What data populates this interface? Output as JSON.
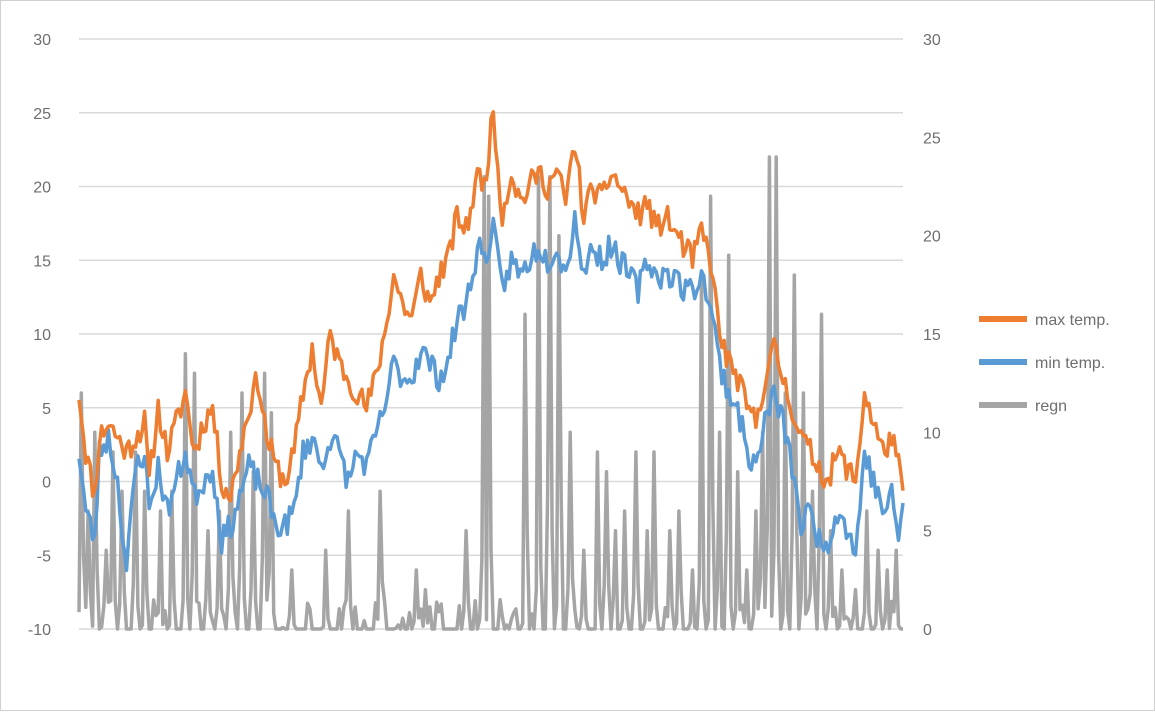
{
  "chart_data": {
    "type": "line",
    "title": "",
    "xlabel": "",
    "ylabel": "",
    "y_left": {
      "ylim": [
        -10,
        30
      ],
      "ticks": [
        -10,
        -5,
        0,
        5,
        10,
        15,
        20,
        25,
        30
      ],
      "tick_labels": [
        "-10",
        "-5",
        "0",
        "5",
        "10",
        "15",
        "20",
        "25",
        "30"
      ]
    },
    "y_right": {
      "ylim": [
        0,
        30
      ],
      "ticks": [
        0,
        5,
        10,
        15,
        20,
        25,
        30
      ],
      "tick_labels": [
        "0",
        "5",
        "10",
        "15",
        "20",
        "25",
        "30"
      ]
    },
    "grid": true,
    "legend_position": "right",
    "x": {
      "start": 1,
      "end": 365,
      "step": 1,
      "labels_shown": false
    },
    "series": [
      {
        "name": "max temp.",
        "axis": "left",
        "color": "#ED7D31",
        "knots_x": [
          1,
          4,
          8,
          10,
          14,
          18,
          22,
          26,
          30,
          32,
          36,
          40,
          44,
          48,
          52,
          56,
          60,
          64,
          68,
          72,
          76,
          80,
          84,
          88,
          92,
          96,
          100,
          104,
          108,
          112,
          116,
          120,
          124,
          128,
          132,
          136,
          140,
          144,
          148,
          152,
          156,
          160,
          164,
          168,
          172,
          176,
          178,
          180,
          184,
          188,
          192,
          196,
          200,
          204,
          208,
          212,
          216,
          220,
          224,
          228,
          232,
          236,
          240,
          244,
          248,
          252,
          256,
          260,
          264,
          268,
          272,
          276,
          280,
          284,
          288,
          292,
          296,
          300,
          304,
          308,
          312,
          316,
          320,
          324,
          328,
          332,
          336,
          340,
          344,
          348,
          352,
          356,
          360,
          363,
          365
        ],
        "knots_y": [
          6,
          2,
          -1,
          3,
          4,
          3,
          2,
          3,
          4,
          0,
          5,
          2,
          4,
          6,
          2,
          4,
          5,
          0,
          -1,
          2,
          5,
          7,
          3,
          1,
          0,
          2,
          6,
          9,
          5,
          10,
          8,
          7,
          6,
          5,
          7,
          10,
          14,
          12,
          11,
          14,
          12,
          14,
          15,
          18,
          17,
          20,
          21,
          20,
          25,
          18,
          21,
          19,
          20,
          21,
          20,
          21,
          19,
          23,
          18,
          20,
          19,
          21,
          20,
          19,
          18,
          19,
          17,
          18,
          17,
          16,
          15,
          17,
          15,
          10,
          8,
          7,
          5,
          4,
          7,
          9,
          7,
          5,
          3,
          2,
          1,
          0,
          2,
          1,
          0,
          6,
          4,
          2,
          3,
          1,
          -1
        ],
        "noise_amplitude": 0.9,
        "noise_seed": 11
      },
      {
        "name": "min temp.",
        "axis": "left",
        "color": "#5B9BD5",
        "knots_x": [
          1,
          4,
          8,
          10,
          14,
          18,
          22,
          26,
          30,
          32,
          36,
          40,
          44,
          48,
          52,
          56,
          60,
          64,
          68,
          72,
          76,
          80,
          84,
          88,
          92,
          96,
          100,
          104,
          108,
          112,
          116,
          120,
          124,
          128,
          132,
          136,
          140,
          144,
          148,
          152,
          156,
          160,
          164,
          168,
          172,
          176,
          178,
          180,
          184,
          188,
          192,
          196,
          200,
          204,
          208,
          212,
          216,
          220,
          224,
          228,
          232,
          236,
          240,
          244,
          248,
          252,
          256,
          260,
          264,
          268,
          272,
          276,
          280,
          284,
          288,
          292,
          296,
          300,
          304,
          308,
          312,
          316,
          320,
          324,
          328,
          332,
          336,
          340,
          344,
          348,
          352,
          356,
          360,
          363,
          365
        ],
        "knots_y": [
          2,
          -2,
          -4,
          2,
          3,
          0,
          -6,
          1,
          2,
          -2,
          1,
          -2,
          0,
          2,
          -1,
          0,
          1,
          -4,
          -3,
          -1,
          1,
          0,
          -1,
          -3,
          -3,
          -2,
          2,
          3,
          1,
          3,
          2,
          0,
          2,
          1,
          3,
          5,
          8,
          7,
          7,
          9,
          8,
          7,
          8,
          11,
          12,
          15,
          16,
          15,
          17,
          13,
          15,
          14,
          15,
          16,
          15,
          16,
          14,
          18,
          14,
          16,
          15,
          16,
          15,
          14,
          13,
          15,
          14,
          14,
          14,
          13,
          13,
          14,
          12,
          8,
          6,
          5,
          2,
          1,
          4,
          6,
          4,
          1,
          -3,
          -2,
          -4,
          -4,
          -2,
          -3,
          -5,
          2,
          0,
          -2,
          -1,
          -4,
          -1
        ],
        "noise_amplitude": 0.9,
        "noise_seed": 23
      },
      {
        "name": "regn",
        "axis": "right",
        "color": "#A5A5A5",
        "values": [
          {
            "day": 2,
            "value": 12
          },
          {
            "day": 5,
            "value": 6
          },
          {
            "day": 8,
            "value": 10
          },
          {
            "day": 13,
            "value": 4
          },
          {
            "day": 16,
            "value": 9
          },
          {
            "day": 20,
            "value": 7
          },
          {
            "day": 26,
            "value": 9
          },
          {
            "day": 30,
            "value": 7
          },
          {
            "day": 37,
            "value": 6
          },
          {
            "day": 42,
            "value": 7
          },
          {
            "day": 48,
            "value": 14
          },
          {
            "day": 52,
            "value": 13
          },
          {
            "day": 58,
            "value": 5
          },
          {
            "day": 63,
            "value": 6
          },
          {
            "day": 68,
            "value": 10
          },
          {
            "day": 73,
            "value": 12
          },
          {
            "day": 78,
            "value": 8
          },
          {
            "day": 83,
            "value": 13
          },
          {
            "day": 86,
            "value": 11
          },
          {
            "day": 95,
            "value": 3
          },
          {
            "day": 110,
            "value": 4
          },
          {
            "day": 120,
            "value": 6
          },
          {
            "day": 134,
            "value": 7
          },
          {
            "day": 150,
            "value": 3
          },
          {
            "day": 154,
            "value": 2
          },
          {
            "day": 172,
            "value": 5
          },
          {
            "day": 180,
            "value": 23
          },
          {
            "day": 182,
            "value": 22
          },
          {
            "day": 198,
            "value": 16
          },
          {
            "day": 204,
            "value": 23
          },
          {
            "day": 209,
            "value": 23
          },
          {
            "day": 213,
            "value": 20
          },
          {
            "day": 218,
            "value": 10
          },
          {
            "day": 224,
            "value": 4
          },
          {
            "day": 230,
            "value": 9
          },
          {
            "day": 234,
            "value": 8
          },
          {
            "day": 238,
            "value": 5
          },
          {
            "day": 242,
            "value": 6
          },
          {
            "day": 247,
            "value": 9
          },
          {
            "day": 252,
            "value": 5
          },
          {
            "day": 255,
            "value": 9
          },
          {
            "day": 262,
            "value": 5
          },
          {
            "day": 266,
            "value": 6
          },
          {
            "day": 272,
            "value": 3
          },
          {
            "day": 276,
            "value": 18
          },
          {
            "day": 280,
            "value": 22
          },
          {
            "day": 284,
            "value": 10
          },
          {
            "day": 288,
            "value": 19
          },
          {
            "day": 292,
            "value": 8
          },
          {
            "day": 296,
            "value": 3
          },
          {
            "day": 300,
            "value": 6
          },
          {
            "day": 303,
            "value": 10
          },
          {
            "day": 306,
            "value": 24
          },
          {
            "day": 309,
            "value": 24
          },
          {
            "day": 313,
            "value": 12
          },
          {
            "day": 317,
            "value": 18
          },
          {
            "day": 321,
            "value": 12
          },
          {
            "day": 325,
            "value": 7
          },
          {
            "day": 329,
            "value": 16
          },
          {
            "day": 333,
            "value": 5
          },
          {
            "day": 338,
            "value": 3
          },
          {
            "day": 344,
            "value": 2
          },
          {
            "day": 349,
            "value": 6
          },
          {
            "day": 354,
            "value": 4
          },
          {
            "day": 358,
            "value": 3
          },
          {
            "day": 362,
            "value": 4
          }
        ]
      }
    ]
  }
}
